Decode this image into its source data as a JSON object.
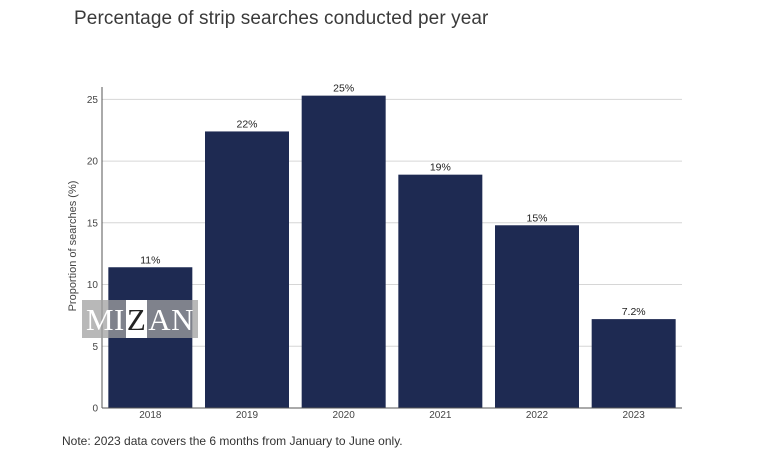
{
  "title": "Percentage of strip searches conducted per year",
  "note": "Note: 2023 data covers the 6 months from January to June only.",
  "watermark": {
    "left": "MI",
    "mid": "Z",
    "right": "AN"
  },
  "chart_data": {
    "type": "bar",
    "title": "Percentage of strip searches conducted per year",
    "xlabel": "",
    "ylabel": "Proportion of searches (%)",
    "categories": [
      "2018",
      "2019",
      "2020",
      "2021",
      "2022",
      "2023"
    ],
    "values": [
      11.4,
      22.4,
      25.3,
      18.9,
      14.8,
      7.2
    ],
    "data_labels": [
      "11%",
      "22%",
      "25%",
      "19%",
      "15%",
      "7.2%"
    ],
    "yticks": [
      0,
      5,
      10,
      15,
      20,
      25
    ],
    "ylim": [
      0,
      26
    ],
    "grid": true,
    "bar_color": "#1e2a52",
    "grid_color": "#d6d6d6"
  }
}
